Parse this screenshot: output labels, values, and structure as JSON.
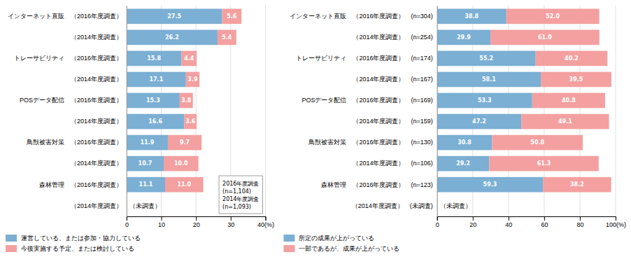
{
  "chart_data": [
    {
      "type": "bar",
      "orientation": "horizontal",
      "stacked": true,
      "data_labels": true,
      "grid": true,
      "legend": "bottom-left",
      "categories": [
        "インターネット直販　（2016年度調査）",
        "（2014年度調査）",
        "トレーサビリティ　（2016年度調査）",
        "（2014年度調査）",
        "POSデータ配信　（2016年度調査）",
        "（2014年度調査）",
        "鳥獣被害対策　（2016年度調査）",
        "（2014年度調査）",
        "森林管理　（2016年度調査）",
        "（2014年度調査）"
      ],
      "series": [
        {
          "name": "運営している、または参加・協力している",
          "color": "#7bafd4",
          "values": [
            27.5,
            26.2,
            15.8,
            17.1,
            15.3,
            16.6,
            11.9,
            10.7,
            11.1,
            null
          ]
        },
        {
          "name": "今後実施する予定、または検討している",
          "color": "#f4a0a0",
          "values": [
            5.6,
            5.4,
            4.4,
            3.9,
            3.8,
            3.6,
            9.7,
            10.0,
            11.0,
            null
          ],
          "value_labels": [
            "5.6",
            "5.4",
            "4.4",
            "3.9",
            "3.8",
            "3.6",
            "9.7",
            "10.0",
            "11.0",
            null
          ]
        }
      ],
      "xlim": [
        0,
        40
      ],
      "xticks": [
        0,
        10,
        20,
        30,
        {
          "value": 40,
          "label": "40(%)"
        }
      ],
      "annotations": [
        {
          "text": "（未調査）",
          "category": 9
        },
        {
          "text": "2016年度調査\n(n=1,104)\n2014年度調査\n(n=1,093)"
        }
      ]
    },
    {
      "type": "bar",
      "orientation": "horizontal",
      "stacked": true,
      "data_labels": true,
      "grid": true,
      "legend": "bottom-left",
      "categories": [
        "インターネット直販　（2016年度調査）　(n=304)",
        "（2014年度調査）　(n=254)",
        "トレーサビリティ　（2016年度調査）　(n=174)",
        "（2014年度調査）　(n=167)",
        "POSデータ配信　（2016年度調査）　(n=169)",
        "（2014年度調査）　(n=159)",
        "鳥獣被害対策　（2016年度調査）　(n=130)",
        "（2014年度調査）　(n=106)",
        "森林管理　（2016年度調査）　(n=123)",
        "（2014年度調査）　(未調査)"
      ],
      "series": [
        {
          "name": "所定の成果が上がっている",
          "color": "#7bafd4",
          "values": [
            38.8,
            29.9,
            55.2,
            58.1,
            53.3,
            47.2,
            30.8,
            29.2,
            59.3,
            null
          ]
        },
        {
          "name": "一部であるが、成果が上がっている",
          "color": "#f4a0a0",
          "values": [
            52.0,
            61.0,
            40.2,
            39.5,
            40.8,
            49.1,
            50.8,
            61.3,
            38.2,
            null
          ],
          "value_labels": [
            "52.0",
            "61.0",
            "40.2",
            "39.5",
            "40.8",
            "49.1",
            "50.8",
            "61.3",
            "38.2",
            null
          ]
        }
      ],
      "xlim": [
        0,
        100
      ],
      "xticks": [
        0,
        20,
        40,
        60,
        80,
        {
          "value": 100,
          "label": "100(%)"
        }
      ],
      "annotations": [
        {
          "text": "（未調査）",
          "category": 9
        }
      ]
    }
  ]
}
